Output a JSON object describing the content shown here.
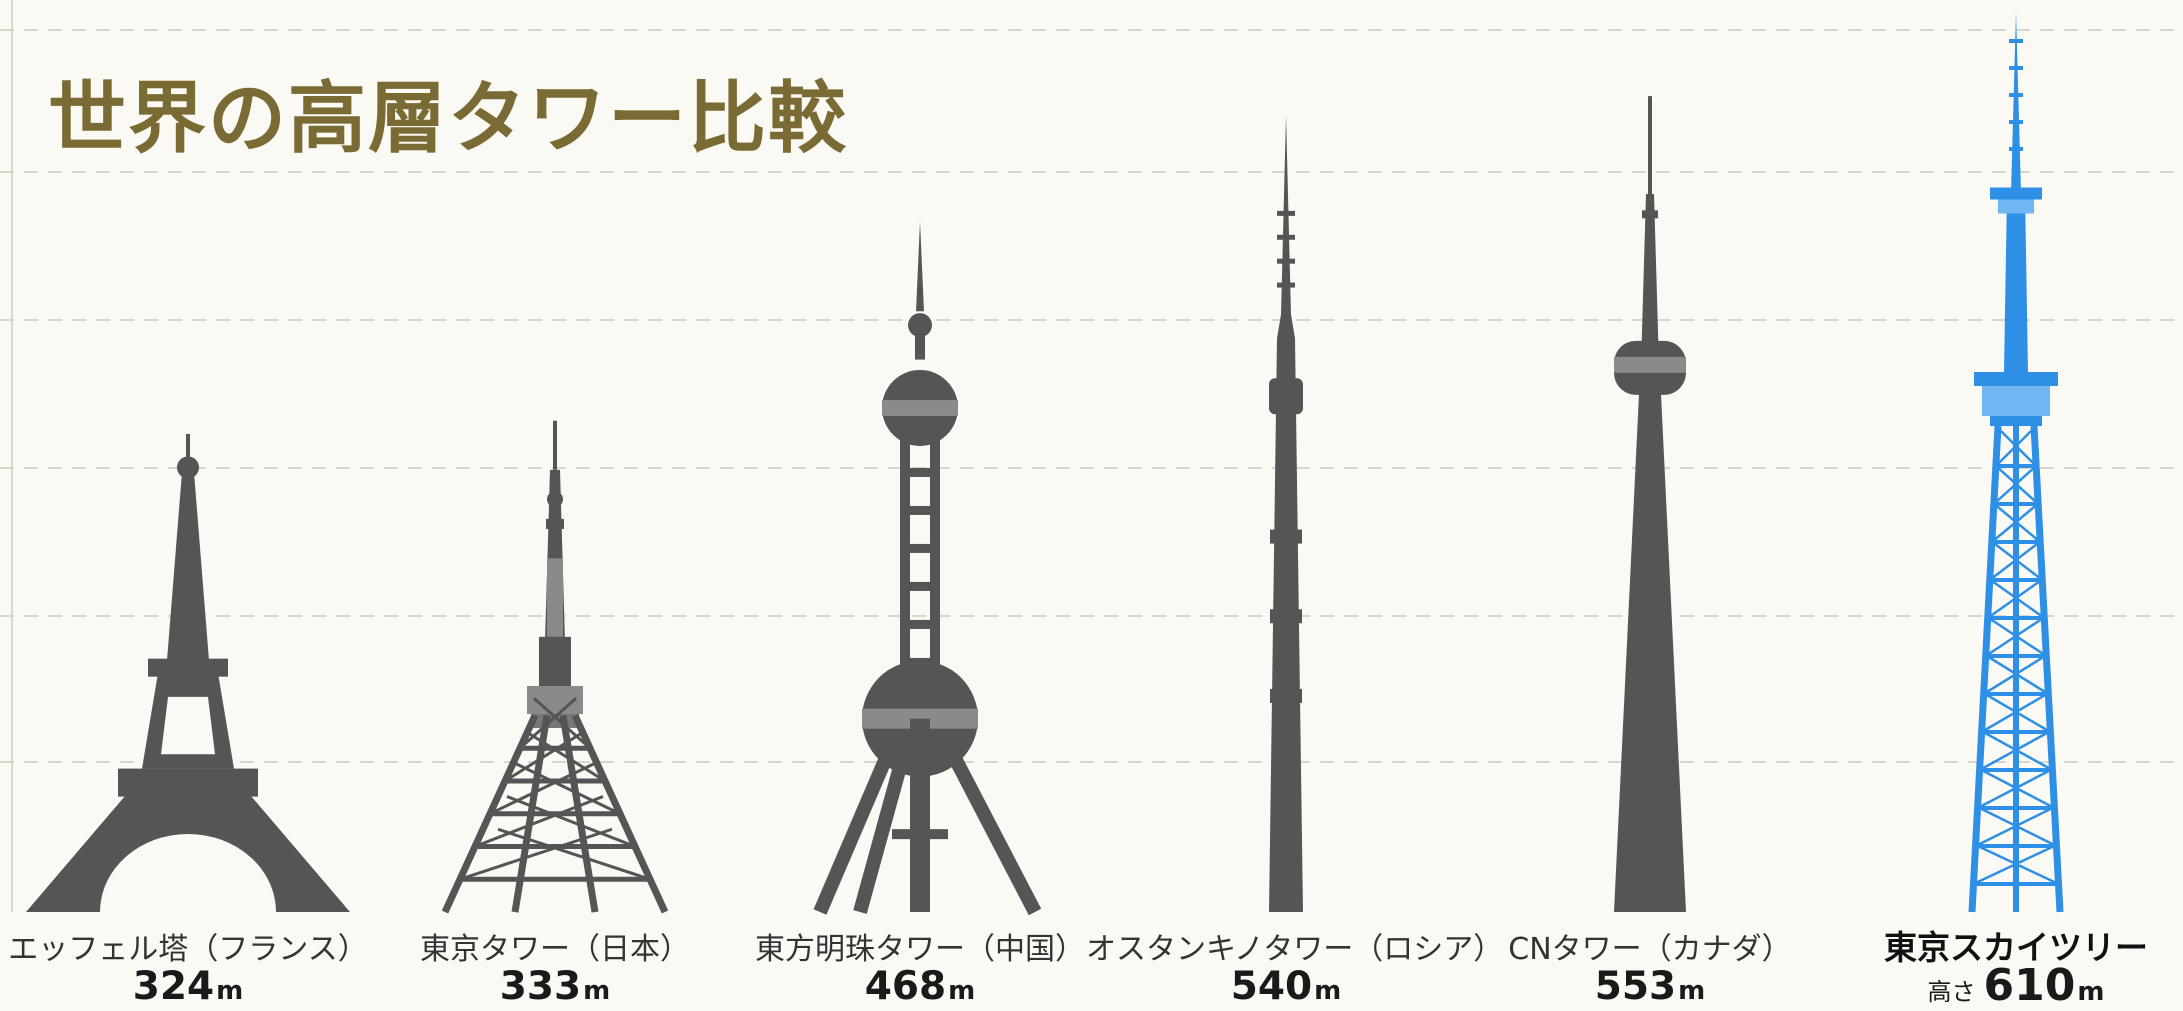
{
  "chart_data": {
    "type": "bar",
    "title": "世界の高層タワー比較",
    "unit": "m",
    "highlight_prefix": "高さ",
    "colors": {
      "tower": "#555555",
      "tower_dark": "#4a4a4a",
      "tower_light": "#8a8a8a",
      "highlight": "#2e8fe6",
      "highlight_light": "#6fb6f2",
      "title": "#7a6a33",
      "grid": "#d9d6cc"
    },
    "grid": true,
    "categories": [
      "エッフェル塔（フランス）",
      "東京タワー（日本）",
      "東方明珠タワー（中国）",
      "オスタンキノタワー（ロシア）",
      "CNタワー（カナダ）",
      "東京スカイツリー"
    ],
    "values": [
      324,
      333,
      468,
      540,
      553,
      610
    ],
    "highlight_index": 5
  }
}
